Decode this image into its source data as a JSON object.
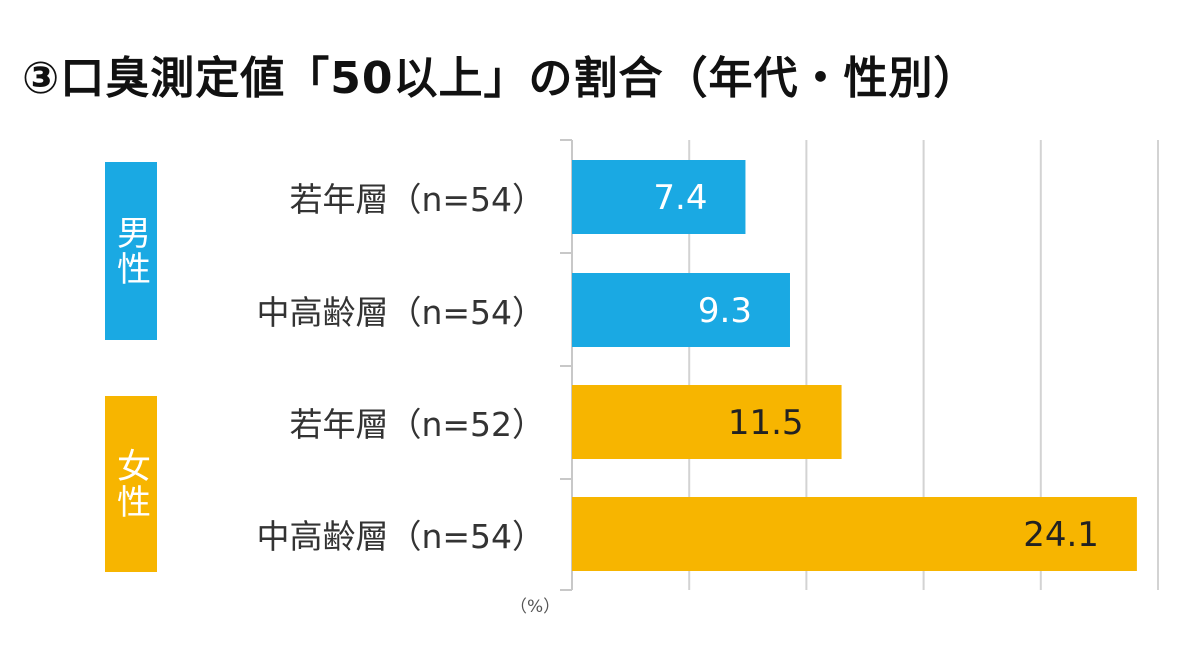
{
  "title": "③口臭測定値「50以上」の割合（年代・性別）",
  "unit": "（%）",
  "groups": [
    {
      "name": "男性",
      "color": "#1aa9e3"
    },
    {
      "name": "女性",
      "color": "#f7b500"
    }
  ],
  "chart_data": {
    "type": "bar",
    "orientation": "horizontal",
    "title": "③口臭測定値「50以上」の割合（年代・性別）",
    "unit": "（%）",
    "categories": [
      "若年層（n=54）",
      "中高齢層（n=54）",
      "若年層（n=52）",
      "中高齢層（n=54）"
    ],
    "groups": [
      "男性",
      "男性",
      "女性",
      "女性"
    ],
    "values": [
      7.4,
      9.3,
      11.5,
      24.1
    ],
    "colors": [
      "#1aa9e3",
      "#1aa9e3",
      "#f7b500",
      "#f7b500"
    ],
    "xlim": [
      0,
      25
    ],
    "grid": true,
    "legend": "none"
  }
}
